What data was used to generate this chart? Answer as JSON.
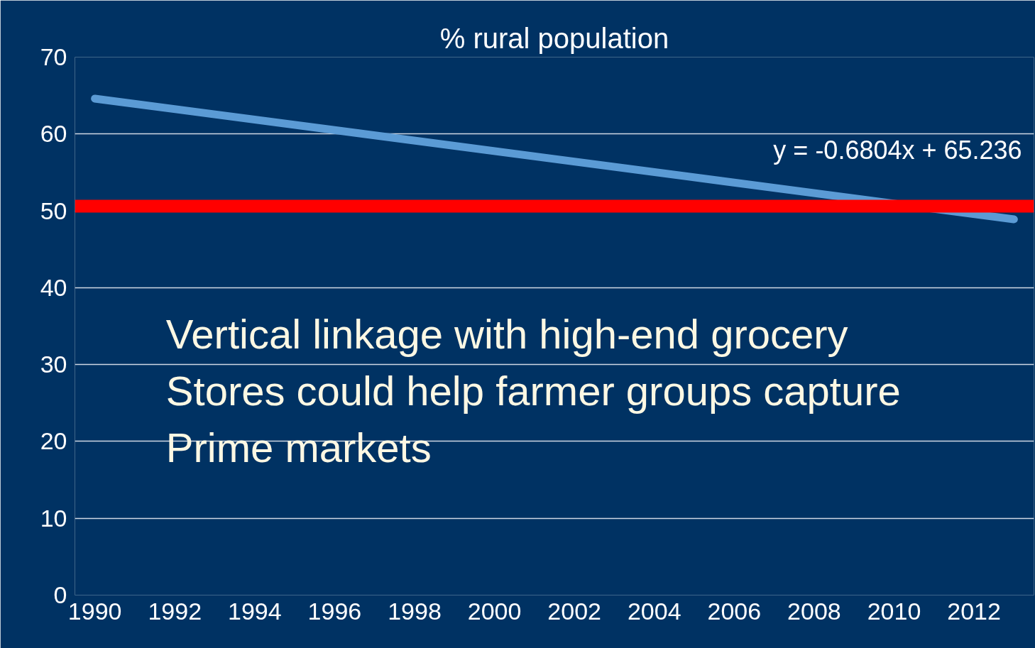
{
  "chart_data": {
    "type": "line",
    "title": "% rural population",
    "series": [
      {
        "color": "#5b9bd5",
        "x": [
          1990,
          2013
        ],
        "values": [
          64.6,
          48.9
        ]
      }
    ],
    "xlim": [
      1989.5,
      2013.5
    ],
    "xticks": [
      1990,
      1992,
      1994,
      1996,
      1998,
      2000,
      2002,
      2004,
      2006,
      2008,
      2010,
      2012
    ],
    "ylim": [
      0,
      70
    ],
    "yticks": [
      0,
      10,
      20,
      30,
      40,
      50,
      60,
      70
    ],
    "grid": "y",
    "marker": "none",
    "line_style": "solid",
    "ref_lines": [
      {
        "axis": "y",
        "value": 50.6,
        "label": null,
        "color": "#ff0000"
      }
    ],
    "annotations": [
      "y = -0.6804x + 65.236",
      "Vertical linkage with high-end grocery\nStores could help farmer groups capture\nPrime markets"
    ]
  }
}
